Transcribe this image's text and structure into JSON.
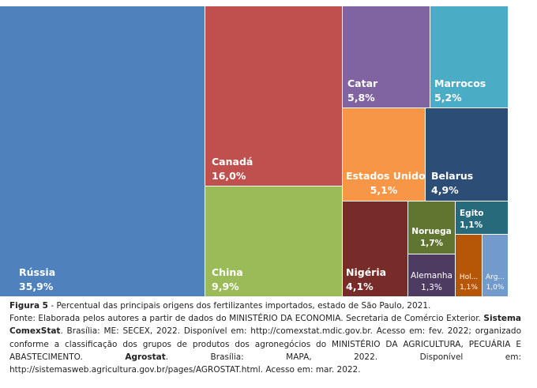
{
  "chart_data": {
    "type": "treemap",
    "title": "",
    "items": [
      {
        "name": "Rússia",
        "value": 35.9,
        "label": "35,9%",
        "color": "#4f81bd"
      },
      {
        "name": "Canadá",
        "value": 16.0,
        "label": "16,0%",
        "color": "#c0504d"
      },
      {
        "name": "China",
        "value": 9.9,
        "label": "9,9%",
        "color": "#9bbb59"
      },
      {
        "name": "Catar",
        "value": 5.8,
        "label": "5,8%",
        "color": "#8064a2"
      },
      {
        "name": "Marrocos",
        "value": 5.2,
        "label": "5,2%",
        "color": "#4bacc6"
      },
      {
        "name": "Estados Unidos",
        "value": 5.1,
        "label": "5,1%",
        "color": "#f79646"
      },
      {
        "name": "Belarus",
        "value": 4.9,
        "label": "4,9%",
        "color": "#2c4d75"
      },
      {
        "name": "Nigéria",
        "value": 4.1,
        "label": "4,1%",
        "color": "#772c2a"
      },
      {
        "name": "Noruega",
        "value": 1.7,
        "label": "1,7%",
        "color": "#5f7530"
      },
      {
        "name": "Egito",
        "value": 1.1,
        "label": "1,1%",
        "color": "#276a7c"
      },
      {
        "name": "Alemanha",
        "value": 1.3,
        "label": "1,3%",
        "color": "#4d3b62"
      },
      {
        "name": "Hol...",
        "value": 1.1,
        "label": "1,1%",
        "color": "#b65708"
      },
      {
        "name": "Arg...",
        "value": 1.0,
        "label": "1,0%",
        "color": "#729aca"
      }
    ]
  },
  "caption": {
    "figure_label": "Figura 5",
    "figure_text": " - Percentual das principais origens dos fertilizantes importados, estado de São Paulo, 2021.",
    "source_1": "Fonte: Elaborada pelos autores a partir de dados do MINISTÉRIO DA ECONOMIA. Secretaria de Comércio Exterior. ",
    "source_bold_1": "Sistema ComexStat",
    "source_2": ". Brasília: ME: SECEX, 2022. Disponível em: http://comexstat.mdic.gov.br. Acesso em: fev. 2022; organizado conforme a classificação dos grupos de produtos dos agronegócios do MINISTÉRIO DA AGRICULTURA, PECUÁRIA E ABASTECIMENTO. ",
    "source_bold_2": "Agrostat",
    "source_3": ". Brasília: MAPA, 2022. Disponível em: http://sistemasweb.agricultura.gov.br/pages/AGROSTAT.html. Acesso em: mar. 2022."
  }
}
